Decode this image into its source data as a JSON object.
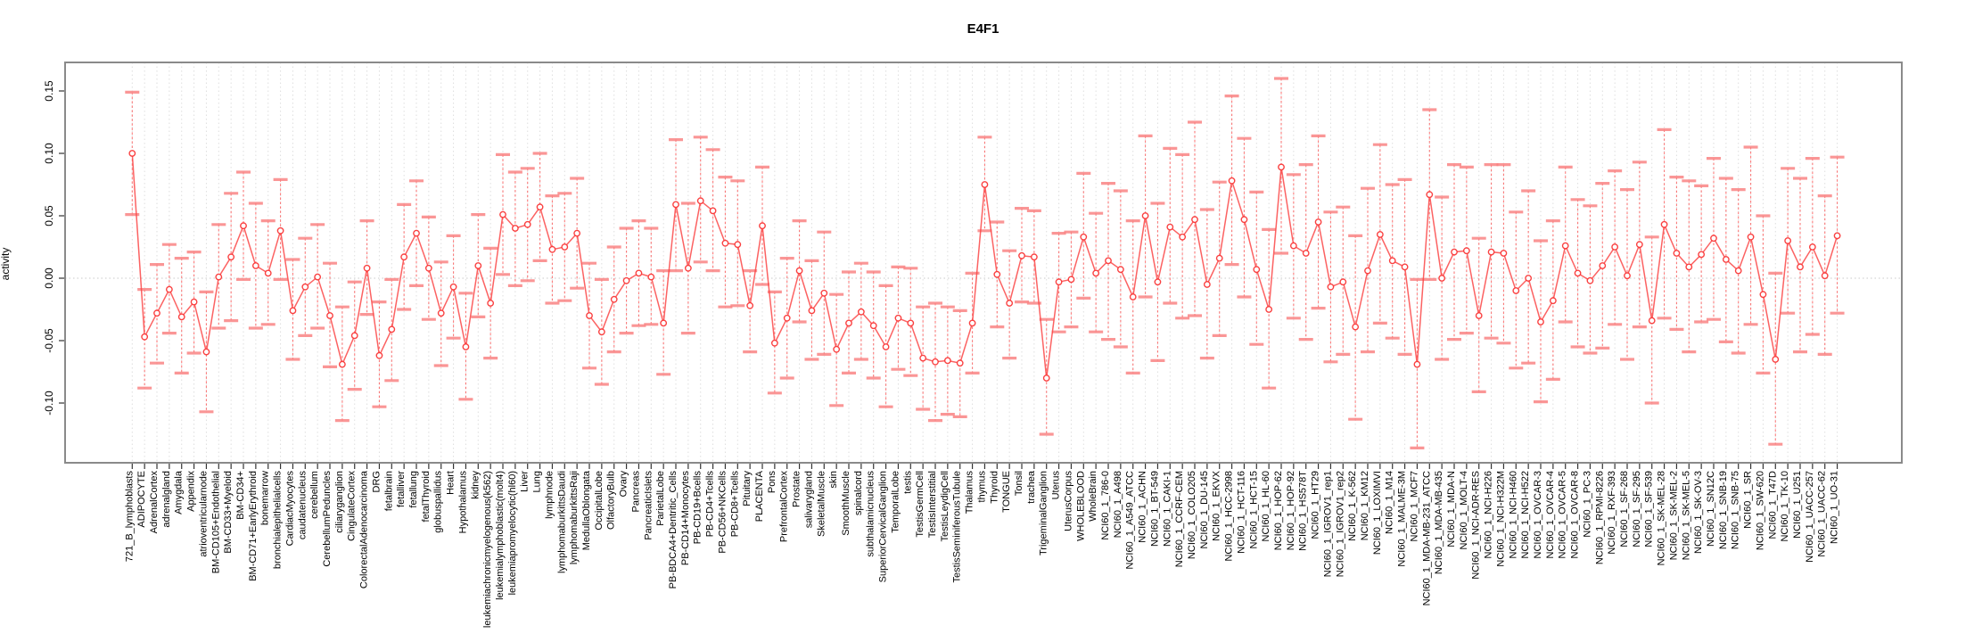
{
  "chart_data": {
    "type": "line",
    "title": "E4F1",
    "xlabel": "",
    "ylabel": "activity",
    "ylim": [
      -0.148,
      0.173
    ],
    "grid": true,
    "legend": "none",
    "marker": "open-circle",
    "error_bars": true,
    "ytick_labels": [
      "-0.10",
      "-0.05",
      "0.00",
      "0.05",
      "0.10",
      "0.15"
    ],
    "ytick_values": [
      -0.1,
      -0.05,
      0.0,
      0.05,
      0.1,
      0.15
    ],
    "colors": {
      "series_line": "#fc4646",
      "marker_stroke": "#fa3737",
      "error_stem": "#fc5050",
      "error_cap": "#f98484",
      "gridline": "#dedede",
      "zero_line": "#c8c8c8",
      "plot_border": "#8a8a8a",
      "tick": "#333333",
      "text": "#000000"
    },
    "categories": [
      "721_B_lymphoblasts",
      "ADIPOCYTE",
      "AdrenalCortex",
      "adrenalgland",
      "Amygdala",
      "Appendix",
      "atrioventricularnode",
      "BM-CD105+Endothelial",
      "BM-CD33+Myeloid",
      "BM-CD34+",
      "BM-CD71+EarlyErythroid",
      "bonemarrow",
      "bronchialepithelialcells",
      "CardiacMyocytes",
      "caudatenucleus",
      "cerebellum",
      "CerebellumPeduncles",
      "ciliaryganglion",
      "CingulateCortex",
      "ColorectalAdenocarcinoma",
      "DRG",
      "fetalbrain",
      "fetalliver",
      "fetallung",
      "fetalThyroid",
      "globuspallidus",
      "Heart",
      "Hypothalamus",
      "kidney",
      "leukemiachronicmyelogenous(k562)",
      "leukemialymphoblastic(molt4)",
      "leukemiapromyelocytic(hl60)",
      "Liver",
      "Lung",
      "lymphnode",
      "lymphomaburkittsDaudi",
      "lymphomaburkittsRaji",
      "MedullaOblongata",
      "OccipitalLobe",
      "OlfactoryBulb",
      "Ovary",
      "Pancreas",
      "PancreaticIslets",
      "ParietalLobe",
      "PB-BDCA4+Dentritic_Cells",
      "PB-CD14+Monocytes",
      "PB-CD19+Bcells",
      "PB-CD4+Tcells",
      "PB-CD56+NKCells",
      "PB-CD8+Tcells",
      "Pituitary",
      "PLACENTA",
      "Pons",
      "PrefrontalCortex",
      "Prostate",
      "salivarygland",
      "SkeletalMuscle",
      "skin",
      "SmoothMuscle",
      "spinalcord",
      "subthalamicnucleus",
      "SuperiorCervicalGanglion",
      "TemporalLobe",
      "testis",
      "TestisGermCell",
      "TestisInterstitial",
      "TestisLeydigCell",
      "TestisSeminiferousTubule",
      "Thalamus",
      "thymus",
      "Thyroid",
      "TONGUE",
      "Tonsil",
      "trachea",
      "TrigeminalGanglion",
      "Uterus",
      "UterusCorpus",
      "WHOLEBLOOD",
      "WholeBrain",
      "NCI60_1_786-0",
      "NCI60_1_A498",
      "NCI60_1_A549_ATCC",
      "NCI60_1_ACHN",
      "NCI60_1_BT-549",
      "NCI60_1_CAKI-1",
      "NCI60_1_CCRF-CEM",
      "NCI60_1_COLO205",
      "NCI60_1_DU-145",
      "NCI60_1_EKVX",
      "NCI60_1_HCC-2998",
      "NCI60_1_HCT-116",
      "NCI60_1_HCT-15",
      "NCI60_1_HL-60",
      "NCI60_1_HOP-62",
      "NCI60_1_HOP-92",
      "NCI60_1_HS578T",
      "NCI60_1_HT29",
      "NCI60_1_IGROV1_rep1",
      "NCI60_1_IGROV1_rep2",
      "NCI60_1_K-562",
      "NCI60_1_KM12",
      "NCI60_1_LOXIMVI",
      "NCI60_1_M14",
      "NCI60_1_MALME-3M",
      "NCI60_1_MCF7",
      "NCI60_1_MDA-MB-231_ATCC",
      "NCI60_1_MDA-MB-435",
      "NCI60_1_MDA-N",
      "NCI60_1_MOLT-4",
      "NCI60_1_NCI-ADR-RES",
      "NCI60_1_NCI-H226",
      "NCI60_1_NCI-H322M",
      "NCI60_1_NCI-H460",
      "NCI60_1_NCI-H522",
      "NCI60_1_OVCAR-3",
      "NCI60_1_OVCAR-4",
      "NCI60_1_OVCAR-5",
      "NCI60_1_OVCAR-8",
      "NCI60_1_PC-3",
      "NCI60_1_RPMI-8226",
      "NCI60_1_RXF-393",
      "NCI60_1_SF-268",
      "NCI60_1_SF-295",
      "NCI60_1_SF-539",
      "NCI60_1_SK-MEL-28",
      "NCI60_1_SK-MEL-2",
      "NCI60_1_SK-MEL-5",
      "NCI60_1_SK-OV-3",
      "NCI60_1_SN12C",
      "NCI60_1_SNB-19",
      "NCI60_1_SNB-75",
      "NCI60_1_SR",
      "NCI60_1_SW-620",
      "NCI60_1_T47D",
      "NCI60_1_TK-10",
      "NCI60_1_U251",
      "NCI60_1_UACC-257",
      "NCI60_1_UACC-62",
      "NCI60_1_UO-31"
    ],
    "values": [
      0.1,
      -0.047,
      -0.028,
      -0.009,
      -0.031,
      -0.019,
      -0.059,
      0.001,
      0.017,
      0.042,
      0.01,
      0.004,
      0.038,
      -0.026,
      -0.007,
      0.001,
      -0.03,
      -0.069,
      -0.046,
      0.008,
      -0.062,
      -0.041,
      0.017,
      0.036,
      0.008,
      -0.028,
      -0.007,
      -0.055,
      0.01,
      -0.02,
      0.051,
      0.04,
      0.043,
      0.057,
      0.023,
      0.025,
      0.036,
      -0.03,
      -0.043,
      -0.017,
      -0.002,
      0.004,
      0.001,
      -0.036,
      0.059,
      0.008,
      0.062,
      0.054,
      0.028,
      0.027,
      -0.022,
      0.042,
      -0.052,
      -0.032,
      0.006,
      -0.026,
      -0.012,
      -0.057,
      -0.036,
      -0.027,
      -0.038,
      -0.055,
      -0.032,
      -0.036,
      -0.064,
      -0.067,
      -0.066,
      -0.068,
      -0.036,
      0.075,
      0.003,
      -0.02,
      0.018,
      0.017,
      -0.08,
      -0.003,
      -0.001,
      0.033,
      0.004,
      0.014,
      0.007,
      -0.015,
      0.05,
      -0.003,
      0.041,
      0.033,
      0.047,
      -0.005,
      0.016,
      0.078,
      0.047,
      0.007,
      -0.025,
      0.089,
      0.026,
      0.02,
      0.045,
      -0.007,
      -0.003,
      -0.039,
      0.006,
      0.035,
      0.014,
      0.009,
      -0.069,
      0.067,
      0.0,
      0.021,
      0.022,
      -0.03,
      0.021,
      0.02,
      -0.01,
      0.0,
      -0.035,
      -0.018,
      0.026,
      0.004,
      -0.002,
      0.01,
      0.025,
      0.002,
      0.027,
      -0.034,
      0.043,
      0.02,
      0.009,
      0.019,
      0.032,
      0.015,
      0.006,
      0.033,
      -0.013,
      -0.065,
      0.03,
      0.009,
      0.025,
      0.002,
      0.034
    ],
    "err_lo": [
      0.051,
      -0.088,
      -0.068,
      -0.044,
      -0.076,
      -0.06,
      -0.107,
      -0.04,
      -0.034,
      -0.001,
      -0.04,
      -0.037,
      -0.001,
      -0.065,
      -0.046,
      -0.04,
      -0.071,
      -0.114,
      -0.089,
      -0.029,
      -0.103,
      -0.082,
      -0.025,
      -0.006,
      -0.033,
      -0.07,
      -0.048,
      -0.097,
      -0.031,
      -0.064,
      0.003,
      -0.006,
      -0.002,
      0.014,
      -0.02,
      -0.018,
      -0.008,
      -0.072,
      -0.085,
      -0.059,
      -0.044,
      -0.038,
      -0.037,
      -0.077,
      0.006,
      -0.044,
      0.013,
      0.006,
      -0.023,
      -0.022,
      -0.059,
      -0.005,
      -0.092,
      -0.08,
      -0.035,
      -0.065,
      -0.061,
      -0.102,
      -0.076,
      -0.065,
      -0.08,
      -0.103,
      -0.073,
      -0.078,
      -0.105,
      -0.114,
      -0.109,
      -0.111,
      -0.076,
      0.038,
      -0.039,
      -0.064,
      -0.019,
      -0.02,
      -0.125,
      -0.043,
      -0.039,
      -0.016,
      -0.043,
      -0.049,
      -0.055,
      -0.076,
      -0.015,
      -0.066,
      -0.02,
      -0.032,
      -0.03,
      -0.064,
      -0.046,
      0.011,
      -0.015,
      -0.053,
      -0.088,
      0.02,
      -0.032,
      -0.049,
      -0.024,
      -0.067,
      -0.061,
      -0.113,
      -0.059,
      -0.036,
      -0.048,
      -0.061,
      -0.136,
      -0.001,
      -0.065,
      -0.049,
      -0.044,
      -0.091,
      -0.048,
      -0.052,
      -0.072,
      -0.068,
      -0.099,
      -0.081,
      -0.035,
      -0.055,
      -0.06,
      -0.056,
      -0.037,
      -0.065,
      -0.039,
      -0.1,
      -0.032,
      -0.041,
      -0.059,
      -0.035,
      -0.033,
      -0.051,
      -0.06,
      -0.037,
      -0.076,
      -0.133,
      -0.028,
      -0.059,
      -0.045,
      -0.061,
      -0.028
    ],
    "err_hi": [
      0.149,
      -0.009,
      0.011,
      0.027,
      0.016,
      0.021,
      -0.011,
      0.043,
      0.068,
      0.085,
      0.06,
      0.046,
      0.079,
      0.015,
      0.032,
      0.043,
      0.012,
      -0.023,
      -0.003,
      0.046,
      -0.019,
      -0.001,
      0.059,
      0.078,
      0.049,
      0.013,
      0.034,
      -0.012,
      0.051,
      0.024,
      0.099,
      0.085,
      0.088,
      0.1,
      0.066,
      0.068,
      0.08,
      0.012,
      -0.001,
      0.025,
      0.04,
      0.046,
      0.04,
      0.006,
      0.111,
      0.06,
      0.113,
      0.103,
      0.081,
      0.078,
      0.006,
      0.089,
      -0.011,
      0.016,
      0.046,
      0.014,
      0.037,
      -0.013,
      0.005,
      0.012,
      0.005,
      -0.006,
      0.009,
      0.008,
      -0.023,
      -0.02,
      -0.023,
      -0.026,
      0.004,
      0.113,
      0.045,
      0.022,
      0.056,
      0.054,
      -0.033,
      0.036,
      0.037,
      0.084,
      0.052,
      0.076,
      0.07,
      0.046,
      0.114,
      0.06,
      0.104,
      0.099,
      0.125,
      0.055,
      0.077,
      0.146,
      0.112,
      0.069,
      0.039,
      0.16,
      0.083,
      0.091,
      0.114,
      0.053,
      0.057,
      0.034,
      0.072,
      0.107,
      0.075,
      0.079,
      -0.001,
      0.135,
      0.065,
      0.091,
      0.089,
      0.032,
      0.091,
      0.091,
      0.053,
      0.07,
      0.03,
      0.046,
      0.089,
      0.063,
      0.058,
      0.076,
      0.086,
      0.071,
      0.093,
      0.033,
      0.119,
      0.081,
      0.078,
      0.074,
      0.096,
      0.08,
      0.071,
      0.105,
      0.05,
      0.004,
      0.088,
      0.08,
      0.096,
      0.066,
      0.097
    ]
  }
}
